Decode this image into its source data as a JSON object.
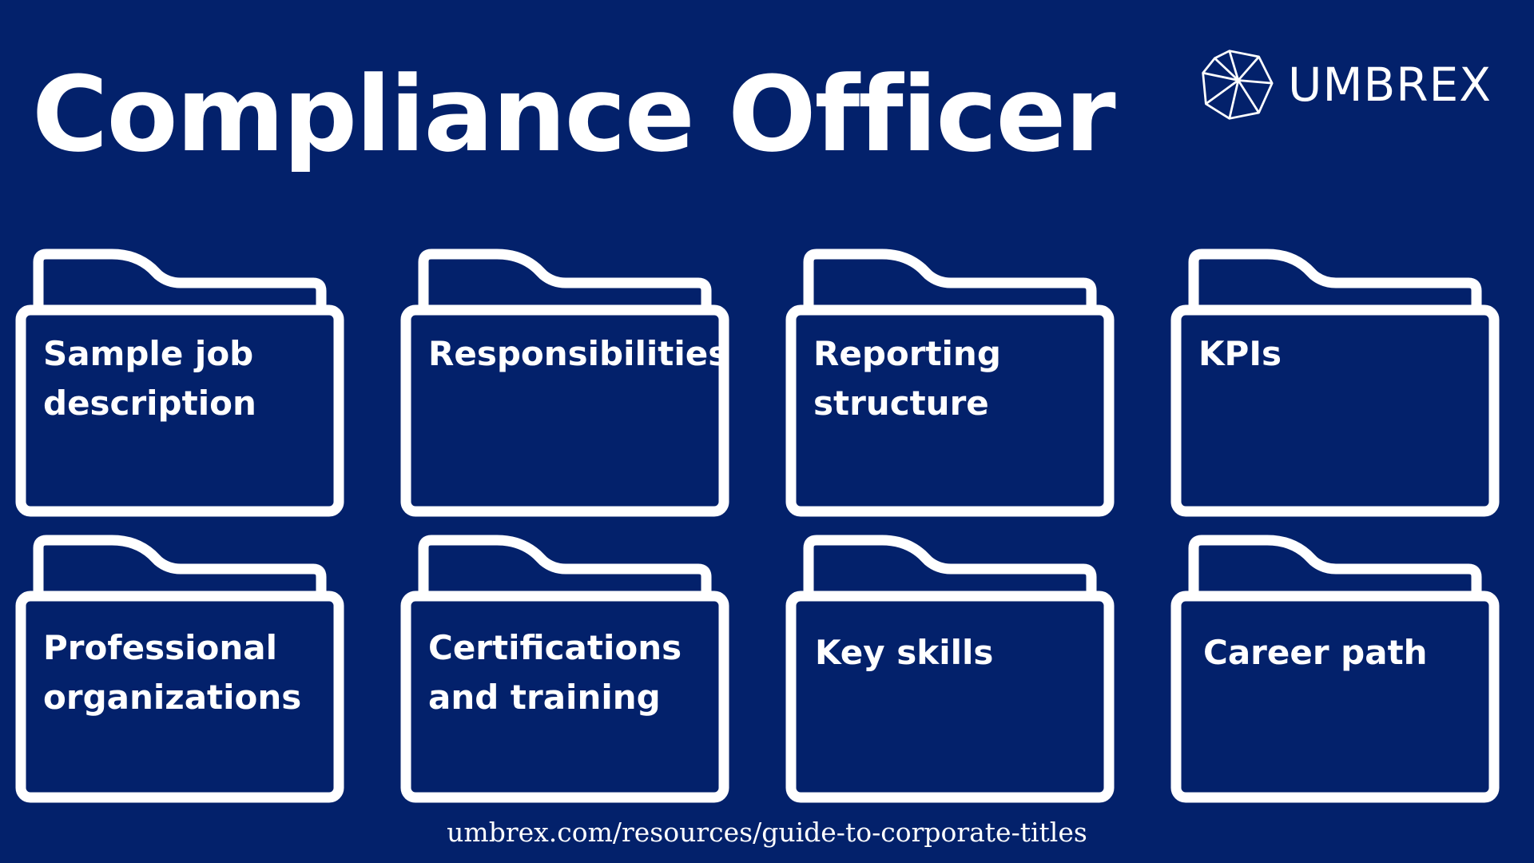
{
  "header": {
    "title": "Compliance Officer"
  },
  "brand": {
    "name": "UMBREX",
    "logo_icon": "geodesic-polygon-logo-icon"
  },
  "folders": [
    {
      "label": "Sample job description",
      "icon": "folder-icon"
    },
    {
      "label": "Responsibilities",
      "icon": "folder-icon"
    },
    {
      "label": "Reporting structure",
      "icon": "folder-icon"
    },
    {
      "label": "KPIs",
      "icon": "folder-icon"
    },
    {
      "label": "Professional organizations",
      "icon": "folder-icon"
    },
    {
      "label": "Certifications and training",
      "icon": "folder-icon"
    },
    {
      "label": "Key skills",
      "icon": "folder-icon"
    },
    {
      "label": "Career path",
      "icon": "folder-icon"
    }
  ],
  "footer": {
    "url": "umbrex.com/resources/guide-to-corporate-titles"
  },
  "colors": {
    "background": "#03216b",
    "foreground": "#ffffff"
  }
}
